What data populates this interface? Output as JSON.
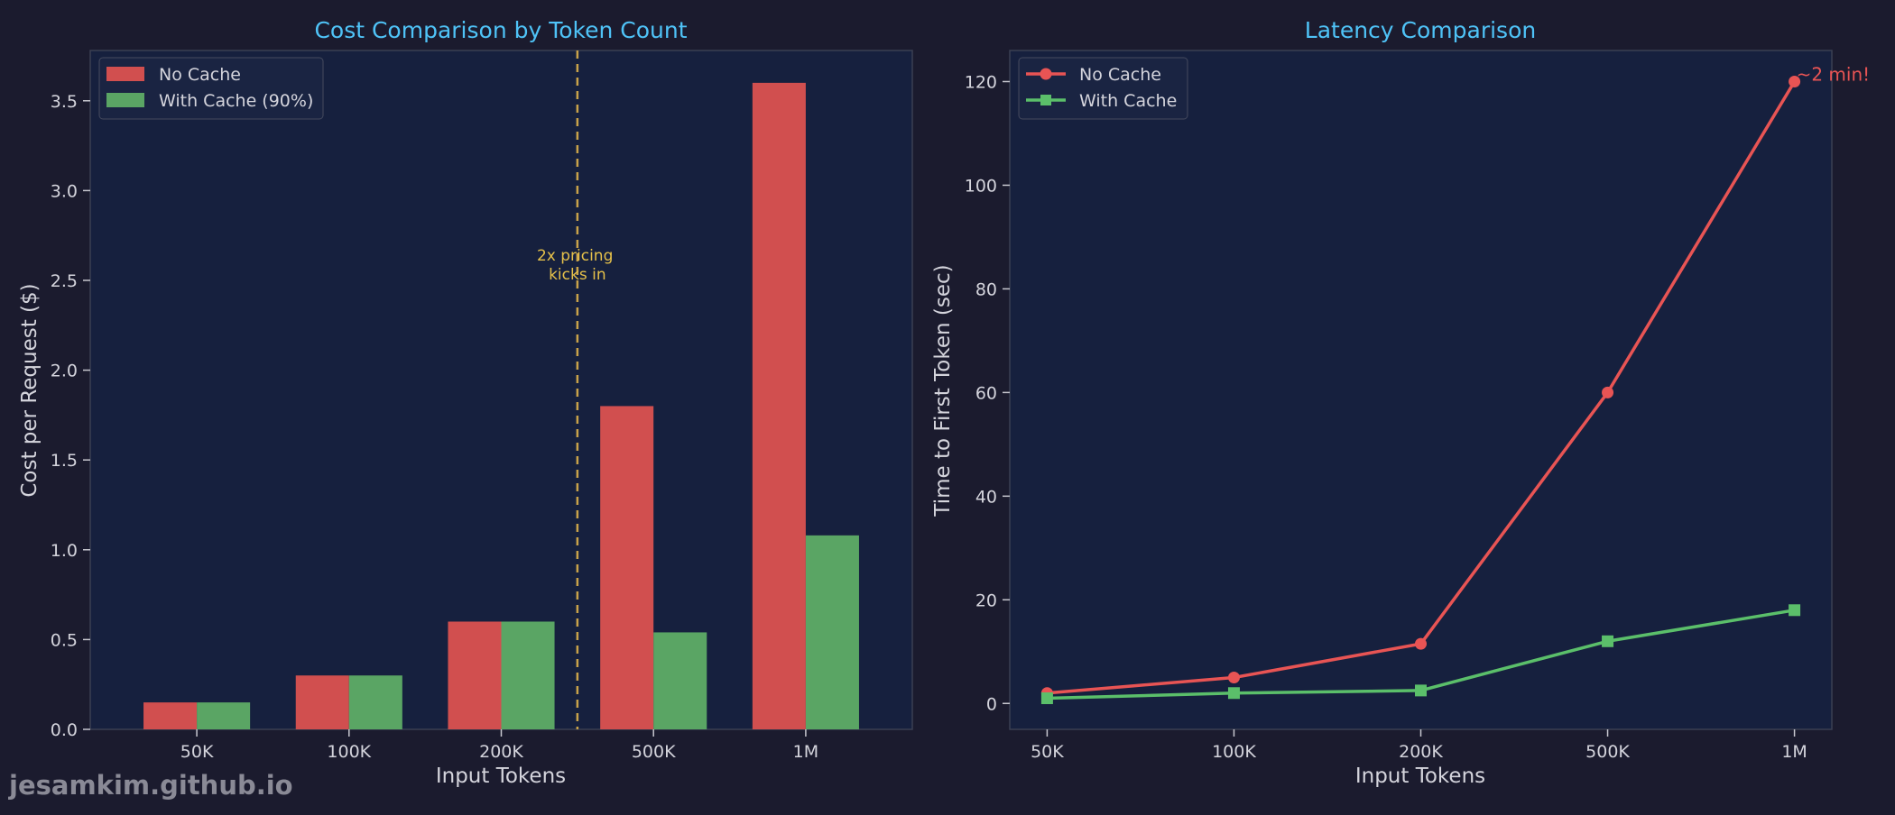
{
  "watermark": "jesamkim.github.io",
  "colors": {
    "background": "#1b1b2e",
    "plot_bg": "#16203e",
    "no_cache": "#d14f4f",
    "with_cache": "#5aa564",
    "title": "#4fc3f7",
    "text": "#d4d4dc",
    "annotation": "#e6c14a",
    "red_line": "#e85454",
    "green_line": "#5bbf6a"
  },
  "chart_data": [
    {
      "type": "bar",
      "title": "Cost Comparison by Token Count",
      "xlabel": "Input Tokens",
      "ylabel": "Cost per Request ($)",
      "categories": [
        "50K",
        "100K",
        "200K",
        "500K",
        "1M"
      ],
      "series": [
        {
          "name": "No Cache",
          "values": [
            0.15,
            0.3,
            0.6,
            1.8,
            3.6
          ]
        },
        {
          "name": "With Cache (90%)",
          "values": [
            0.15,
            0.3,
            0.6,
            0.54,
            1.08
          ]
        }
      ],
      "ylim": [
        0,
        3.78
      ],
      "yticks": [
        0.0,
        0.5,
        1.0,
        1.5,
        2.0,
        2.5,
        3.0,
        3.5
      ],
      "ytick_labels": [
        "0.0",
        "0.5",
        "1.0",
        "1.5",
        "2.0",
        "2.5",
        "3.0",
        "3.5"
      ],
      "vline_at": 2.5,
      "annotation": {
        "lines": [
          "2x pricing",
          "kicks in"
        ],
        "y": 2.55
      },
      "legend": "top-left",
      "grid": false
    },
    {
      "type": "line",
      "title": "Latency Comparison",
      "xlabel": "Input Tokens",
      "ylabel": "Time to First Token (sec)",
      "categories": [
        "50K",
        "100K",
        "200K",
        "500K",
        "1M"
      ],
      "series": [
        {
          "name": "No Cache",
          "marker": "circle",
          "values": [
            2,
            5,
            11.5,
            60,
            120
          ]
        },
        {
          "name": "With Cache",
          "marker": "square",
          "values": [
            1,
            2,
            2.5,
            12,
            18
          ]
        }
      ],
      "ylim": [
        -5,
        126
      ],
      "yticks": [
        0,
        20,
        40,
        60,
        80,
        100,
        120
      ],
      "ytick_labels": [
        "0",
        "20",
        "40",
        "60",
        "80",
        "100",
        "120"
      ],
      "annotation": {
        "text": "~2 min!",
        "at_index": 4,
        "value": 120
      },
      "legend": "top-left",
      "grid": false
    }
  ]
}
